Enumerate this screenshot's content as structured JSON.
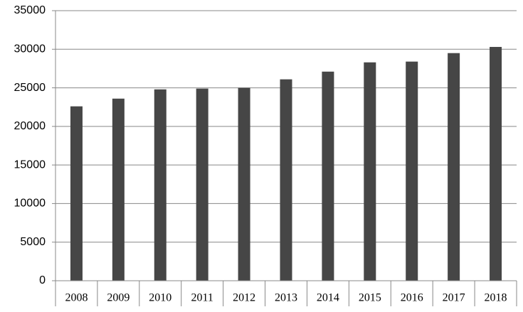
{
  "chart_data": {
    "type": "bar",
    "categories": [
      "2008",
      "2009",
      "2010",
      "2011",
      "2012",
      "2013",
      "2014",
      "2015",
      "2016",
      "2017",
      "2018"
    ],
    "values": [
      22600,
      23600,
      24800,
      24900,
      25000,
      26100,
      27100,
      28300,
      28400,
      29500,
      30300
    ],
    "color": "#464646",
    "ylim": [
      0,
      35000
    ],
    "yticks": [
      0,
      5000,
      10000,
      15000,
      20000,
      25000,
      30000,
      35000
    ],
    "grid": true
  }
}
